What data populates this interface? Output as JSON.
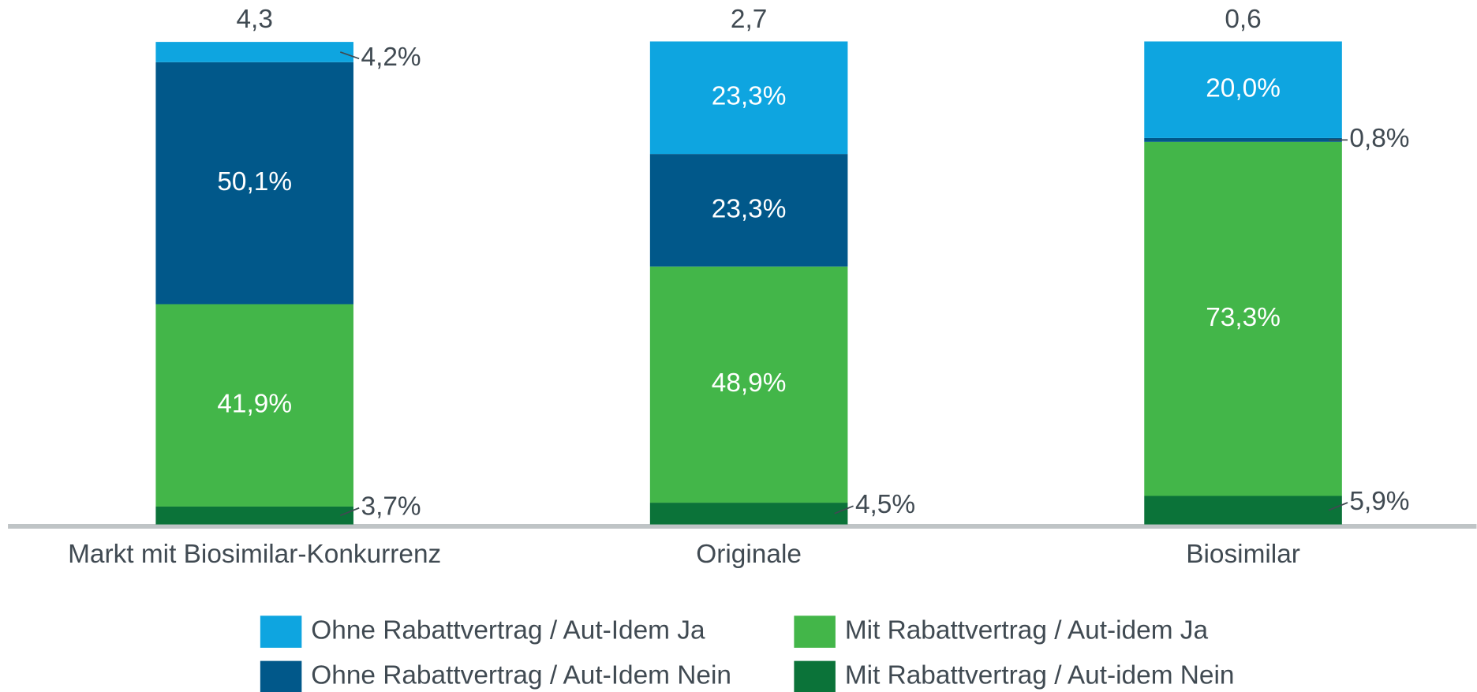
{
  "chart_data": {
    "type": "stacked_bar",
    "categories": [
      "Markt mit Biosimilar-Konkurrenz",
      "Originale",
      "Biosimilar"
    ],
    "ylim": [
      0,
      100
    ],
    "series": [
      {
        "name": "Mit Rabattvertrag / Aut-idem Nein",
        "color": "#0b7339",
        "values": [
          3.7,
          4.5,
          5.9
        ],
        "value_labels": [
          "3,7%",
          "4,5%",
          "5,9%"
        ]
      },
      {
        "name": "Mit Rabattvertrag / Aut-idem Ja",
        "color": "#43b649",
        "values": [
          41.9,
          48.9,
          73.3
        ],
        "value_labels": [
          "41,9%",
          "48,9%",
          "73,3%"
        ]
      },
      {
        "name": "Ohne Rabattvertrag / Aut-Idem Nein",
        "color": "#01588a",
        "values": [
          50.1,
          23.3,
          0.8
        ],
        "value_labels": [
          "50,1%",
          "23,3%",
          "0,8%"
        ]
      },
      {
        "name": "Ohne Rabattvertrag / Aut-Idem Ja",
        "color": "#0ea5e0",
        "values": [
          4.2,
          23.3,
          20.0
        ],
        "value_labels": [
          "4,2%",
          "23,3%",
          "20,0%"
        ]
      }
    ],
    "totals": {
      "values": [
        4.3,
        2.7,
        0.6
      ],
      "value_labels": [
        "4,3",
        "2,7",
        "0,6"
      ]
    }
  }
}
